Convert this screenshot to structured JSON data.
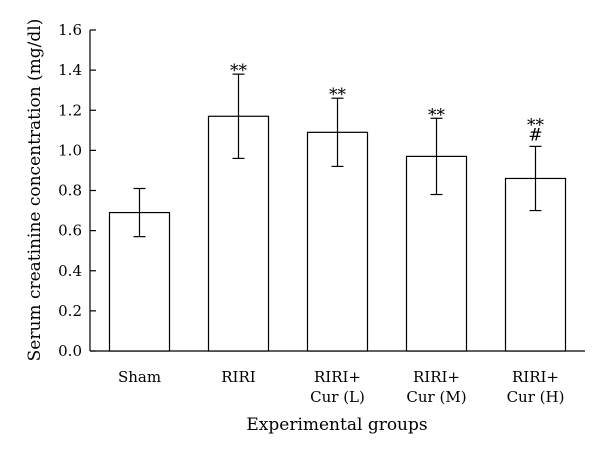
{
  "chart_data": {
    "type": "bar",
    "title": "",
    "xlabel": "Experimental groups",
    "ylabel": "Serum creatinine concentration (mg/dl)",
    "ylim": [
      0,
      1.6
    ],
    "yticks": [
      "0.0",
      "0.2",
      "0.4",
      "0.6",
      "0.8",
      "1.0",
      "1.2",
      "1.4",
      "1.6"
    ],
    "categories": [
      [
        "Sham"
      ],
      [
        "RIRI"
      ],
      [
        "RIRI+",
        "Cur (L)"
      ],
      [
        "RIRI+",
        "Cur (M)"
      ],
      [
        "RIRI+",
        "Cur (H)"
      ]
    ],
    "values": [
      0.69,
      1.17,
      1.09,
      0.97,
      0.86
    ],
    "error_bars": [
      0.12,
      0.21,
      0.17,
      0.19,
      0.16
    ],
    "annotations": [
      [],
      [
        "**"
      ],
      [
        "**"
      ],
      [
        "**"
      ],
      [
        "**",
        "#"
      ]
    ],
    "bar_color": "#ffffff",
    "grid": false,
    "legend": "none"
  }
}
